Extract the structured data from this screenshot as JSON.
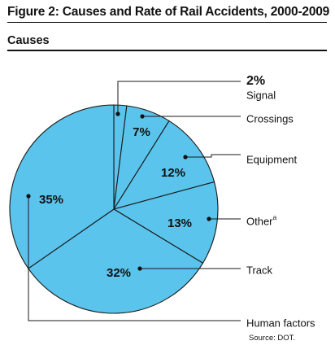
{
  "title": "Figure 2: Causes and Rate of Rail Accidents, 2000-2009",
  "subtitle": "Causes",
  "source": "Source: DOT.",
  "chart_data": {
    "type": "pie",
    "title": "Causes",
    "colors": {
      "fill": "#5ac4ec",
      "stroke": "#1a1a1a"
    },
    "slices": [
      {
        "label": "Signal",
        "value": 2,
        "display": "2%",
        "superscript": ""
      },
      {
        "label": "Crossings",
        "value": 7,
        "display": "7%",
        "superscript": ""
      },
      {
        "label": "Equipment",
        "value": 12,
        "display": "12%",
        "superscript": ""
      },
      {
        "label": "Other",
        "value": 13,
        "display": "13%",
        "superscript": "a"
      },
      {
        "label": "Track",
        "value": 32,
        "display": "32%",
        "superscript": ""
      },
      {
        "label": "Human factors",
        "value": 35,
        "display": "35%",
        "superscript": ""
      }
    ]
  }
}
